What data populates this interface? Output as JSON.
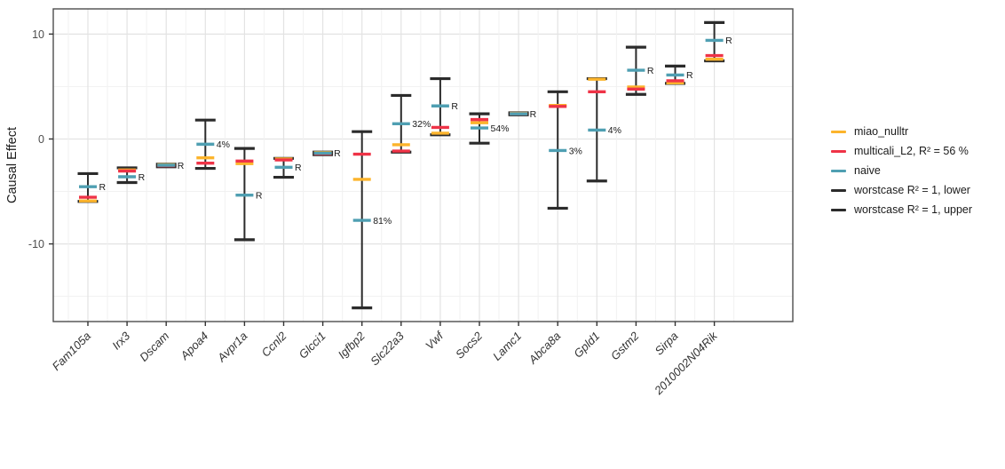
{
  "chart_data": {
    "type": "errorbar",
    "title": "",
    "ylabel": "Causal Effect",
    "xlabel": "",
    "ylim": [
      -17.4,
      12.4
    ],
    "yticks": [
      10,
      0,
      -10
    ],
    "yticks_minor": [
      5,
      -5,
      -15
    ],
    "grid": "on",
    "legend_position": "right",
    "categories": [
      "Fam105a",
      "Irx3",
      "Dscam",
      "Apoa4",
      "Avpr1a",
      "Ccnl2",
      "Glcci1",
      "Igfbp2",
      "Slc22a3",
      "Vwf",
      "Socs2",
      "Lamc1",
      "Abca8a",
      "Gpld1",
      "Gstm2",
      "Sirpa",
      "2010002N04Rik"
    ],
    "colors": {
      "miao_nulltr": "#FCB42C",
      "multicali_L2": "#EF3347",
      "naive": "#4F9FB2",
      "worstcase": "#2B2B2B",
      "grid_major": "#E3E3E3",
      "grid_minor": "#F1F1F1",
      "panel_border": "#4D4D4D",
      "tick_label": "#4D4D4D",
      "annotation": "#1A1A1A"
    },
    "legend": [
      {
        "label": "miao_nulltr",
        "color": "#FCB42C"
      },
      {
        "label": "multicali_L2, R² = 56 %",
        "color": "#EF3347"
      },
      {
        "label": "naive",
        "color": "#4F9FB2"
      },
      {
        "label": "worstcase R² = 1, lower",
        "color": "#2B2B2B"
      },
      {
        "label": "worstcase R² = 1, upper",
        "color": "#2B2B2B"
      }
    ],
    "points": [
      {
        "gene": "Fam105a",
        "worst_lower": -5.95,
        "worst_upper": -3.3,
        "miao": -5.9,
        "multicali": -5.55,
        "naive": -4.55,
        "label": "R"
      },
      {
        "gene": "Irx3",
        "worst_lower": -4.15,
        "worst_upper": -2.75,
        "miao": -2.95,
        "multicali": -3.05,
        "naive": -3.6,
        "label": "R"
      },
      {
        "gene": "Dscam",
        "worst_lower": -2.65,
        "worst_upper": -2.4,
        "miao": -2.45,
        "multicali": -2.55,
        "naive": -2.5,
        "label": "R"
      },
      {
        "gene": "Apoa4",
        "worst_lower": -2.8,
        "worst_upper": 1.8,
        "miao": -1.8,
        "multicali": -2.3,
        "naive": -0.5,
        "label": "4%"
      },
      {
        "gene": "Avpr1a",
        "worst_lower": -9.6,
        "worst_upper": -0.9,
        "miao": -2.35,
        "multicali": -2.1,
        "naive": -5.35,
        "label": "R"
      },
      {
        "gene": "Ccnl2",
        "worst_lower": -3.65,
        "worst_upper": -1.85,
        "miao": -1.9,
        "multicali": -2.0,
        "naive": -2.7,
        "label": "R"
      },
      {
        "gene": "Glcci1",
        "worst_lower": -1.5,
        "worst_upper": -1.25,
        "miao": -1.3,
        "multicali": -1.4,
        "naive": -1.35,
        "label": "R"
      },
      {
        "gene": "Igfbp2",
        "worst_lower": -16.1,
        "worst_upper": 0.7,
        "miao": -3.85,
        "multicali": -1.45,
        "naive": -7.75,
        "label": "81%"
      },
      {
        "gene": "Slc22a3",
        "worst_lower": -1.25,
        "worst_upper": 4.15,
        "miao": -0.55,
        "multicali": -1.15,
        "naive": 1.45,
        "label": "32%"
      },
      {
        "gene": "Vwf",
        "worst_lower": 0.4,
        "worst_upper": 5.75,
        "miao": 0.55,
        "multicali": 1.1,
        "naive": 3.15,
        "label": "R"
      },
      {
        "gene": "Socs2",
        "worst_lower": -0.4,
        "worst_upper": 2.4,
        "miao": 1.55,
        "multicali": 1.85,
        "naive": 1.05,
        "label": "54%"
      },
      {
        "gene": "Lamc1",
        "worst_lower": 2.3,
        "worst_upper": 2.5,
        "miao": 2.45,
        "multicali": 2.4,
        "naive": 2.4,
        "label": "R"
      },
      {
        "gene": "Abca8a",
        "worst_lower": -6.6,
        "worst_upper": 4.5,
        "miao": 3.2,
        "multicali": 3.1,
        "naive": -1.1,
        "label": "3%"
      },
      {
        "gene": "Gpld1",
        "worst_lower": -4.0,
        "worst_upper": 5.75,
        "miao": 5.7,
        "multicali": 4.5,
        "naive": 0.85,
        "label": "4%"
      },
      {
        "gene": "Gstm2",
        "worst_lower": 4.25,
        "worst_upper": 8.75,
        "miao": 4.95,
        "multicali": 4.75,
        "naive": 6.55,
        "label": "R"
      },
      {
        "gene": "Sirpa",
        "worst_lower": 5.3,
        "worst_upper": 6.95,
        "miao": 5.35,
        "multicali": 5.55,
        "naive": 6.1,
        "label": "R"
      },
      {
        "gene": "2010002N04Rik",
        "worst_lower": 7.45,
        "worst_upper": 11.1,
        "miao": 7.6,
        "multicali": 7.95,
        "naive": 9.4,
        "label": "R"
      }
    ]
  }
}
